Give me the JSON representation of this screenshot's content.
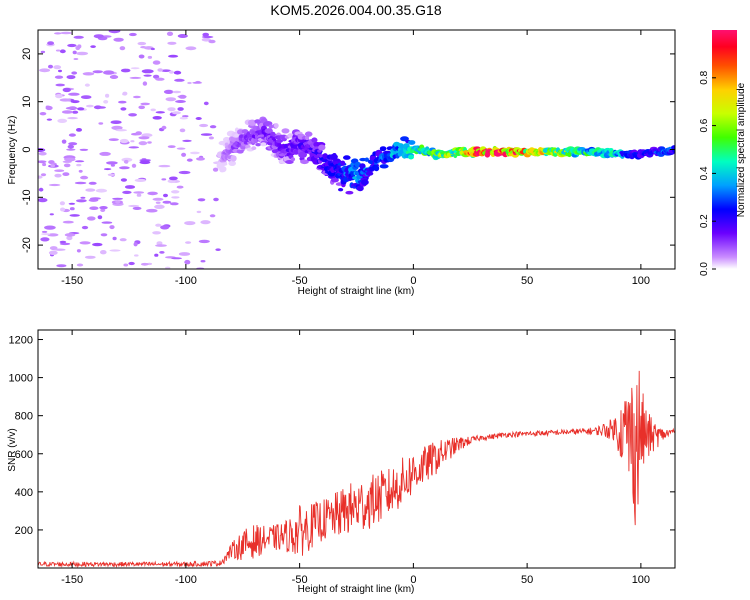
{
  "figure_title": "KOM5.2026.004.00.35.G18",
  "colorbar": {
    "label": "Normalized spectral amplitude",
    "ticks": [
      0.0,
      0.2,
      0.4,
      0.6,
      0.8
    ],
    "tick_labels": [
      "0.0",
      "0.2",
      "0.4",
      "0.6",
      "0.8"
    ]
  },
  "chart_data": [
    {
      "type": "heatmap",
      "title": "",
      "xlabel": "Height of straight line (km)",
      "ylabel": "Frequency (Hz)",
      "xlim": [
        -165,
        115
      ],
      "ylim": [
        -25,
        25
      ],
      "xticks": [
        -150,
        -100,
        -50,
        0,
        50,
        100
      ],
      "xtick_labels": [
        "-150",
        "-100",
        "-50",
        "0",
        "50",
        "100"
      ],
      "yticks": [
        -20,
        -10,
        0,
        10,
        20
      ],
      "ytick_labels": [
        "-20",
        "-10",
        "0",
        "10",
        "20"
      ],
      "zlim": [
        0,
        1
      ],
      "ridge": {
        "x": [
          -85,
          -80,
          -75,
          -70,
          -65,
          -60,
          -55,
          -50,
          -45,
          -40,
          -35,
          -30,
          -25,
          -20,
          -15,
          -10,
          -5,
          0,
          5,
          10,
          15,
          20,
          25,
          30,
          40,
          50,
          60,
          70,
          80,
          90,
          95,
          100,
          105,
          110,
          115
        ],
        "freq": [
          -2,
          0,
          2,
          3,
          4,
          1,
          0,
          1,
          0,
          -2,
          -4,
          -5,
          -5,
          -4,
          -2,
          -1,
          0,
          0,
          0,
          -1,
          -1,
          -0.5,
          -0.5,
          -0.5,
          -0.5,
          -0.5,
          -0.5,
          -0.5,
          -0.5,
          -0.8,
          -1,
          -1,
          -0.5,
          -0.5,
          0
        ],
        "amplitude": [
          0.05,
          0.1,
          0.12,
          0.14,
          0.15,
          0.15,
          0.16,
          0.18,
          0.2,
          0.22,
          0.25,
          0.3,
          0.35,
          0.3,
          0.3,
          0.35,
          0.4,
          0.45,
          0.5,
          0.55,
          0.6,
          0.65,
          0.75,
          0.92,
          0.9,
          0.8,
          0.65,
          0.55,
          0.45,
          0.4,
          0.3,
          0.25,
          0.25,
          0.3,
          0.3
        ]
      },
      "noise_region": {
        "x_range": [
          -165,
          -85
        ],
        "amplitude": 0.05,
        "description": "scattered low-amplitude speckle"
      }
    },
    {
      "type": "line",
      "title": "",
      "xlabel": "Height of straight line (km)",
      "ylabel": "SNR (v/v)",
      "xlim": [
        -165,
        115
      ],
      "ylim": [
        0,
        1250
      ],
      "xticks": [
        -150,
        -100,
        -50,
        0,
        50,
        100
      ],
      "xtick_labels": [
        "-150",
        "-100",
        "-50",
        "0",
        "50",
        "100"
      ],
      "yticks": [
        200,
        400,
        600,
        800,
        1000,
        1200
      ],
      "ytick_labels": [
        "200",
        "400",
        "600",
        "800",
        "1000",
        "1200"
      ],
      "series": [
        {
          "name": "SNR",
          "color": "#e8302a",
          "x": [
            -165,
            -150,
            -120,
            -100,
            -85,
            -80,
            -75,
            -70,
            -65,
            -60,
            -55,
            -50,
            -45,
            -40,
            -35,
            -30,
            -25,
            -20,
            -15,
            -10,
            -5,
            0,
            5,
            10,
            15,
            20,
            25,
            30,
            35,
            40,
            50,
            60,
            70,
            80,
            88,
            92,
            95,
            97,
            98,
            99,
            100,
            102,
            105,
            110,
            115
          ],
          "y": [
            20,
            20,
            20,
            20,
            25,
            90,
            120,
            140,
            150,
            160,
            170,
            190,
            220,
            250,
            270,
            300,
            320,
            340,
            370,
            400,
            450,
            500,
            540,
            580,
            620,
            650,
            670,
            685,
            690,
            700,
            705,
            710,
            715,
            720,
            730,
            720,
            700,
            680,
            640,
            700,
            720,
            700,
            690,
            700,
            720
          ],
          "amplitude": [
            12,
            12,
            12,
            12,
            15,
            40,
            80,
            90,
            70,
            70,
            90,
            140,
            120,
            110,
            120,
            130,
            150,
            140,
            140,
            130,
            130,
            120,
            100,
            90,
            60,
            40,
            20,
            14,
            14,
            14,
            14,
            14,
            14,
            20,
            60,
            180,
            300,
            380,
            520,
            420,
            260,
            160,
            90,
            30,
            20
          ]
        }
      ]
    }
  ]
}
